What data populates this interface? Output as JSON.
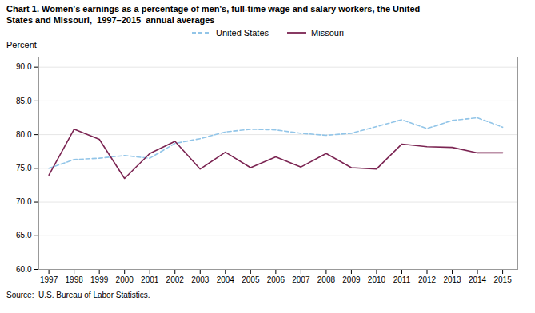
{
  "chart_data": {
    "type": "line",
    "title": "Chart 1. Women's earnings as a percentage of men's, full-time wage and salary workers, the United",
    "subtitle": "States and Missouri,  1997–2015  annual averages",
    "ylabel": "Percent",
    "source": "Source:  U.S. Bureau of Labor Statistics.",
    "x": [
      1997,
      1998,
      1999,
      2000,
      2001,
      2002,
      2003,
      2004,
      2005,
      2006,
      2007,
      2008,
      2009,
      2010,
      2011,
      2012,
      2013,
      2014,
      2015
    ],
    "series": [
      {
        "name": "United States",
        "color": "#92C5E8",
        "line_style": "dashed",
        "values": [
          75.0,
          76.3,
          76.5,
          76.9,
          76.5,
          78.7,
          79.4,
          80.4,
          80.8,
          80.7,
          80.2,
          79.9,
          80.2,
          81.2,
          82.2,
          80.9,
          82.1,
          82.5,
          81.1
        ]
      },
      {
        "name": "Missouri",
        "color": "#7B2452",
        "line_style": "solid",
        "values": [
          74.0,
          80.8,
          79.3,
          73.5,
          77.2,
          79.0,
          74.9,
          77.4,
          75.1,
          76.7,
          75.2,
          77.2,
          75.1,
          74.9,
          78.6,
          78.2,
          78.1,
          77.3,
          77.3
        ]
      }
    ],
    "xlim": [
      1996.6,
      2015.6
    ],
    "xticks": [
      1997,
      1998,
      1999,
      2000,
      2001,
      2002,
      2003,
      2004,
      2005,
      2006,
      2007,
      2008,
      2009,
      2010,
      2011,
      2012,
      2013,
      2014,
      2015
    ],
    "ylim": [
      60.0,
      91.5
    ],
    "yticks": [
      {
        "value": 60,
        "label": "60.0"
      },
      {
        "value": 65,
        "label": "65.0"
      },
      {
        "value": 70,
        "label": "70.0"
      },
      {
        "value": 75,
        "label": "75.0"
      },
      {
        "value": 80,
        "label": "80.0"
      },
      {
        "value": 85,
        "label": "85.0"
      },
      {
        "value": 90,
        "label": "90.0"
      }
    ],
    "grid": true,
    "legend": "top"
  }
}
